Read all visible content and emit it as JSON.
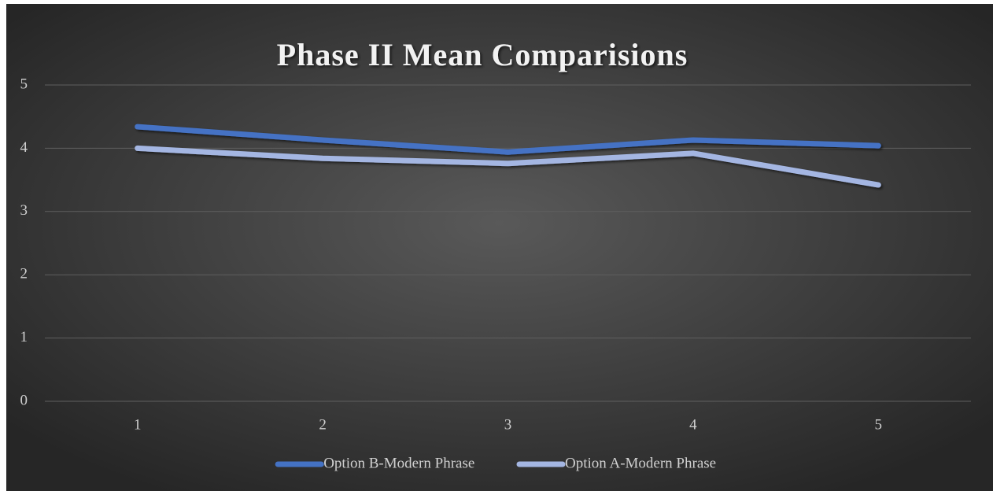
{
  "chart_data": {
    "type": "line",
    "title": "Phase II Mean Comparisions",
    "categories": [
      "1",
      "2",
      "3",
      "4",
      "5"
    ],
    "series": [
      {
        "name": "Option B-Modern Phrase",
        "color": "#4472c4",
        "values": [
          4.34,
          4.13,
          3.94,
          4.13,
          4.04
        ]
      },
      {
        "name": "Option A-Modern Phrase",
        "color": "#a4b6e2",
        "values": [
          4.0,
          3.84,
          3.76,
          3.92,
          3.42
        ]
      }
    ],
    "ylim": [
      0,
      5
    ],
    "yticks": [
      0,
      1,
      2,
      3,
      4,
      5
    ],
    "grid": true,
    "legend": "bottom"
  }
}
